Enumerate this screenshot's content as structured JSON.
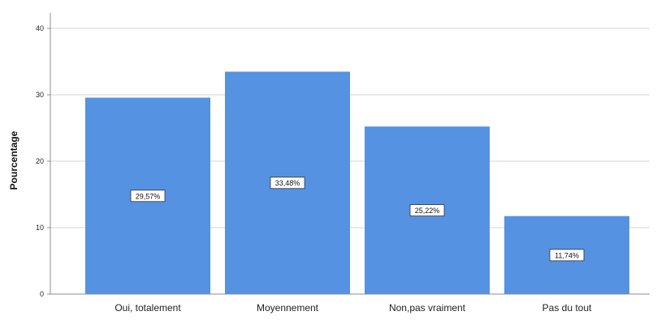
{
  "chart_data": {
    "type": "bar",
    "categories": [
      "Oui, totalement",
      "Moyennement",
      "Non,pas vraiment",
      "Pas du tout"
    ],
    "values": [
      29.57,
      33.48,
      25.22,
      11.74
    ],
    "data_labels": [
      "29,57%",
      "33,48%",
      "25,22%",
      "11,74%"
    ],
    "ylabel": "Pourcentage",
    "xlabel": "",
    "ylim": [
      0,
      40
    ],
    "yticks": [
      0,
      10,
      20,
      30,
      40
    ],
    "ytick_labels": [
      "0",
      "10",
      "20",
      "30",
      "40"
    ],
    "grid": true,
    "legend": "none",
    "bar_color": "#5592e2",
    "grid_color": "#d4d4d4",
    "axis_color": "#8c8c8c"
  }
}
